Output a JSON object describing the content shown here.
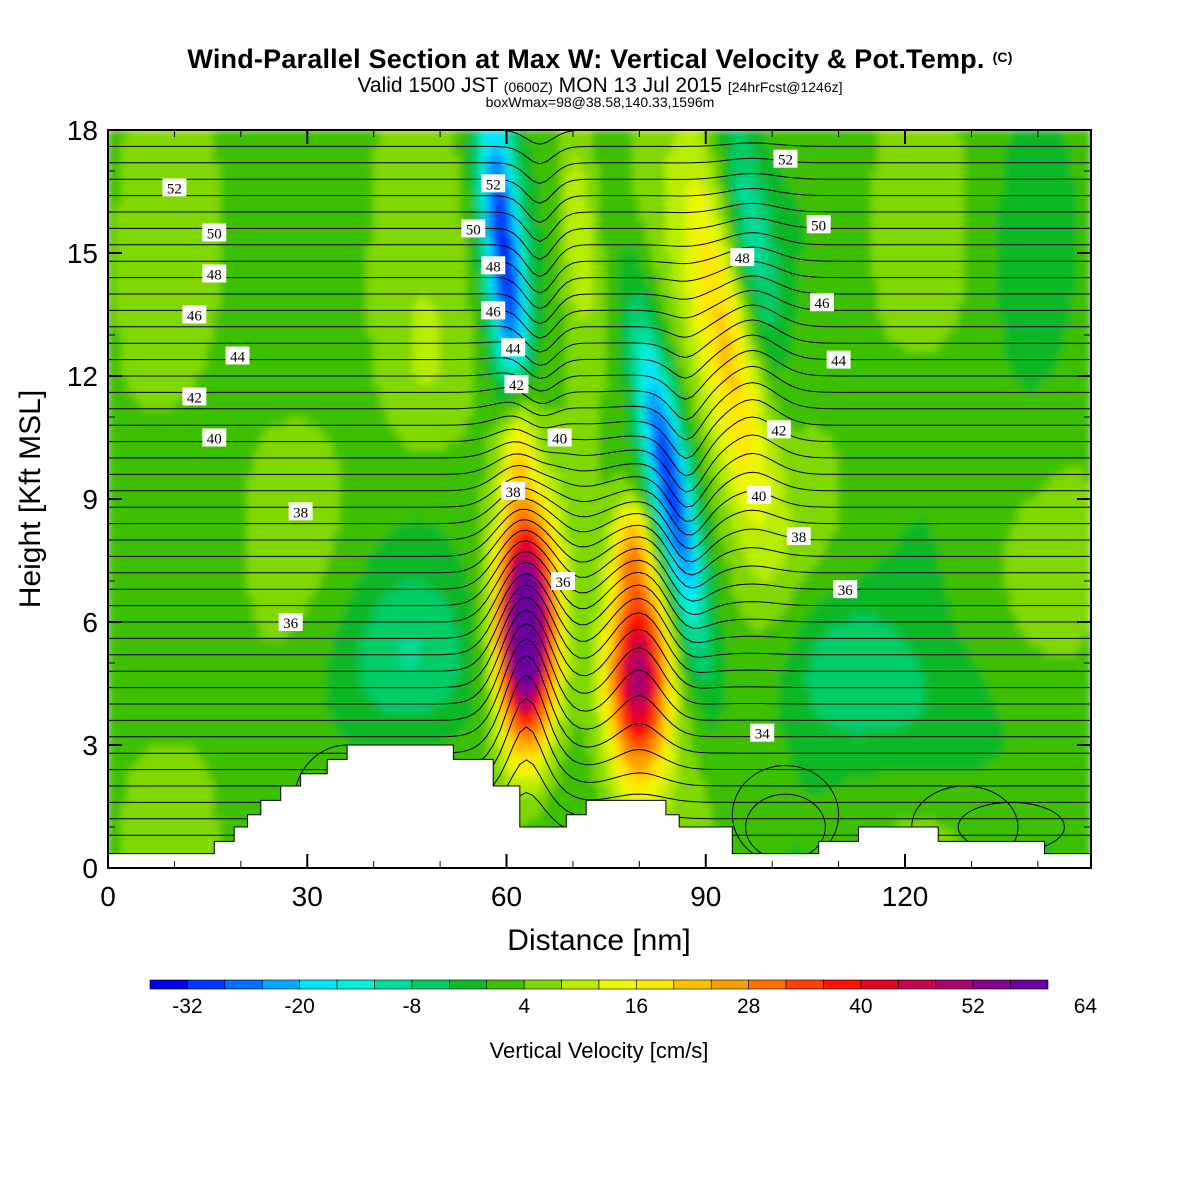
{
  "header": {
    "title": "Wind-Parallel Section at Max W: Vertical Velocity & Pot.Temp.",
    "copyright": "(C)",
    "valid_prefix": "Valid 1500 JST",
    "valid_utc": "(0600Z)",
    "valid_date": "MON 13 Jul 2015",
    "forecast": "[24hrFcst@1246z]",
    "boxline": "boxWmax=98@38.58,140.33,1596m"
  },
  "chart_data": {
    "type": "heatmap",
    "xlabel": "Distance [nm]",
    "ylabel": "Height [Kft MSL]",
    "xlim": [
      0,
      148
    ],
    "ylim": [
      0,
      18
    ],
    "xticks": [
      0,
      30,
      60,
      90,
      120
    ],
    "yticks": [
      0,
      3,
      6,
      9,
      12,
      15,
      18
    ],
    "grid": false,
    "colorbar": {
      "label": "Vertical Velocity [cm/s]",
      "orientation": "horizontal",
      "placement": "bottom",
      "min": -36,
      "step": 4,
      "tick_labels": [
        -32,
        -20,
        -8,
        4,
        16,
        28,
        40,
        52,
        64
      ],
      "colors": [
        "#0000ee",
        "#0038ff",
        "#0070ff",
        "#00a8ff",
        "#00e4ff",
        "#00f0d8",
        "#00dc9a",
        "#00cc68",
        "#10b828",
        "#3cc000",
        "#80d800",
        "#b8ec00",
        "#eaf800",
        "#ffe800",
        "#ffc000",
        "#ff9c00",
        "#ff7000",
        "#ff4000",
        "#ff1000",
        "#e80020",
        "#c80050",
        "#a80070",
        "#8a0090",
        "#6a00a0"
      ]
    },
    "field_features": [
      {
        "kind": "updraft",
        "label": "main updraft",
        "x_nm": 63,
        "z_kft": 5.8,
        "w_cms": 70,
        "x_half_width_nm": 4,
        "z_half_height_kft": 3
      },
      {
        "kind": "updraft",
        "label": "secondary updraft",
        "x_nm": 80,
        "z_kft": 4.7,
        "w_cms": 48,
        "x_half_width_nm": 5,
        "z_half_height_kft": 2.8
      },
      {
        "kind": "downdraft",
        "label": "upper-left tilted downdraft",
        "x_nm": 65,
        "z_kft": 13.5,
        "w_cms": -32,
        "x_half_width_nm": 3
      },
      {
        "kind": "downdraft",
        "label": "tilted downdraft",
        "x_nm": 87,
        "z_kft": 9,
        "w_cms": -30,
        "x_half_width_nm": 3.2
      },
      {
        "kind": "updraft",
        "label": "upper-right tilted updraft",
        "x_nm": 97,
        "z_kft": 12.5,
        "w_cms": 18,
        "x_half_width_nm": 5
      },
      {
        "kind": "downdraft",
        "label": "upper-right tilted downdraft",
        "x_nm": 101,
        "z_kft": 15,
        "w_cms": -14,
        "x_half_width_nm": 4
      }
    ],
    "contours": {
      "name": "Potential Temperature",
      "labels": [
        {
          "text": "52",
          "x": 10,
          "y": 16.6
        },
        {
          "text": "50",
          "x": 16,
          "y": 15.5
        },
        {
          "text": "48",
          "x": 16,
          "y": 14.5
        },
        {
          "text": "46",
          "x": 13,
          "y": 13.5
        },
        {
          "text": "44",
          "x": 19.5,
          "y": 12.5
        },
        {
          "text": "42",
          "x": 13,
          "y": 11.5
        },
        {
          "text": "40",
          "x": 16,
          "y": 10.5
        },
        {
          "text": "38",
          "x": 29,
          "y": 8.7
        },
        {
          "text": "36",
          "x": 27.5,
          "y": 6
        },
        {
          "text": "52",
          "x": 58,
          "y": 16.7
        },
        {
          "text": "50",
          "x": 55,
          "y": 15.6
        },
        {
          "text": "48",
          "x": 58,
          "y": 14.7
        },
        {
          "text": "46",
          "x": 58,
          "y": 13.6
        },
        {
          "text": "44",
          "x": 61,
          "y": 12.7
        },
        {
          "text": "42",
          "x": 61.5,
          "y": 11.8
        },
        {
          "text": "40",
          "x": 68,
          "y": 10.5
        },
        {
          "text": "38",
          "x": 61,
          "y": 9.2
        },
        {
          "text": "36",
          "x": 68.5,
          "y": 7
        },
        {
          "text": "52",
          "x": 102,
          "y": 17.3
        },
        {
          "text": "50",
          "x": 107,
          "y": 15.7
        },
        {
          "text": "48",
          "x": 95.5,
          "y": 14.9
        },
        {
          "text": "46",
          "x": 107.5,
          "y": 13.8
        },
        {
          "text": "44",
          "x": 110,
          "y": 12.4
        },
        {
          "text": "42",
          "x": 101,
          "y": 10.7
        },
        {
          "text": "40",
          "x": 98,
          "y": 9.1
        },
        {
          "text": "38",
          "x": 104,
          "y": 8.1
        },
        {
          "text": "36",
          "x": 111,
          "y": 6.8
        },
        {
          "text": "34",
          "x": 98.5,
          "y": 3.3
        }
      ]
    },
    "terrain_kft": [
      [
        0,
        0.35
      ],
      [
        16,
        0.35
      ],
      [
        16,
        0.65
      ],
      [
        19,
        0.65
      ],
      [
        19,
        1.0
      ],
      [
        21,
        1.0
      ],
      [
        21,
        1.3
      ],
      [
        23,
        1.3
      ],
      [
        23,
        1.65
      ],
      [
        26,
        1.65
      ],
      [
        26,
        2.0
      ],
      [
        29,
        2.0
      ],
      [
        29,
        2.3
      ],
      [
        33,
        2.3
      ],
      [
        33,
        2.65
      ],
      [
        36,
        2.65
      ],
      [
        36,
        3.0
      ],
      [
        52,
        3.0
      ],
      [
        52,
        2.65
      ],
      [
        58,
        2.65
      ],
      [
        58,
        2.0
      ],
      [
        62,
        2.0
      ],
      [
        62,
        1.0
      ],
      [
        69,
        1.0
      ],
      [
        69,
        1.3
      ],
      [
        72,
        1.3
      ],
      [
        72,
        1.65
      ],
      [
        84,
        1.65
      ],
      [
        84,
        1.3
      ],
      [
        86,
        1.3
      ],
      [
        86,
        1.0
      ],
      [
        94,
        1.0
      ],
      [
        94,
        0.35
      ],
      [
        107,
        0.35
      ],
      [
        107,
        0.65
      ],
      [
        113,
        0.65
      ],
      [
        113,
        1.0
      ],
      [
        125,
        1.0
      ],
      [
        125,
        0.65
      ],
      [
        141,
        0.65
      ],
      [
        141,
        0.35
      ],
      [
        148,
        0.35
      ]
    ]
  }
}
